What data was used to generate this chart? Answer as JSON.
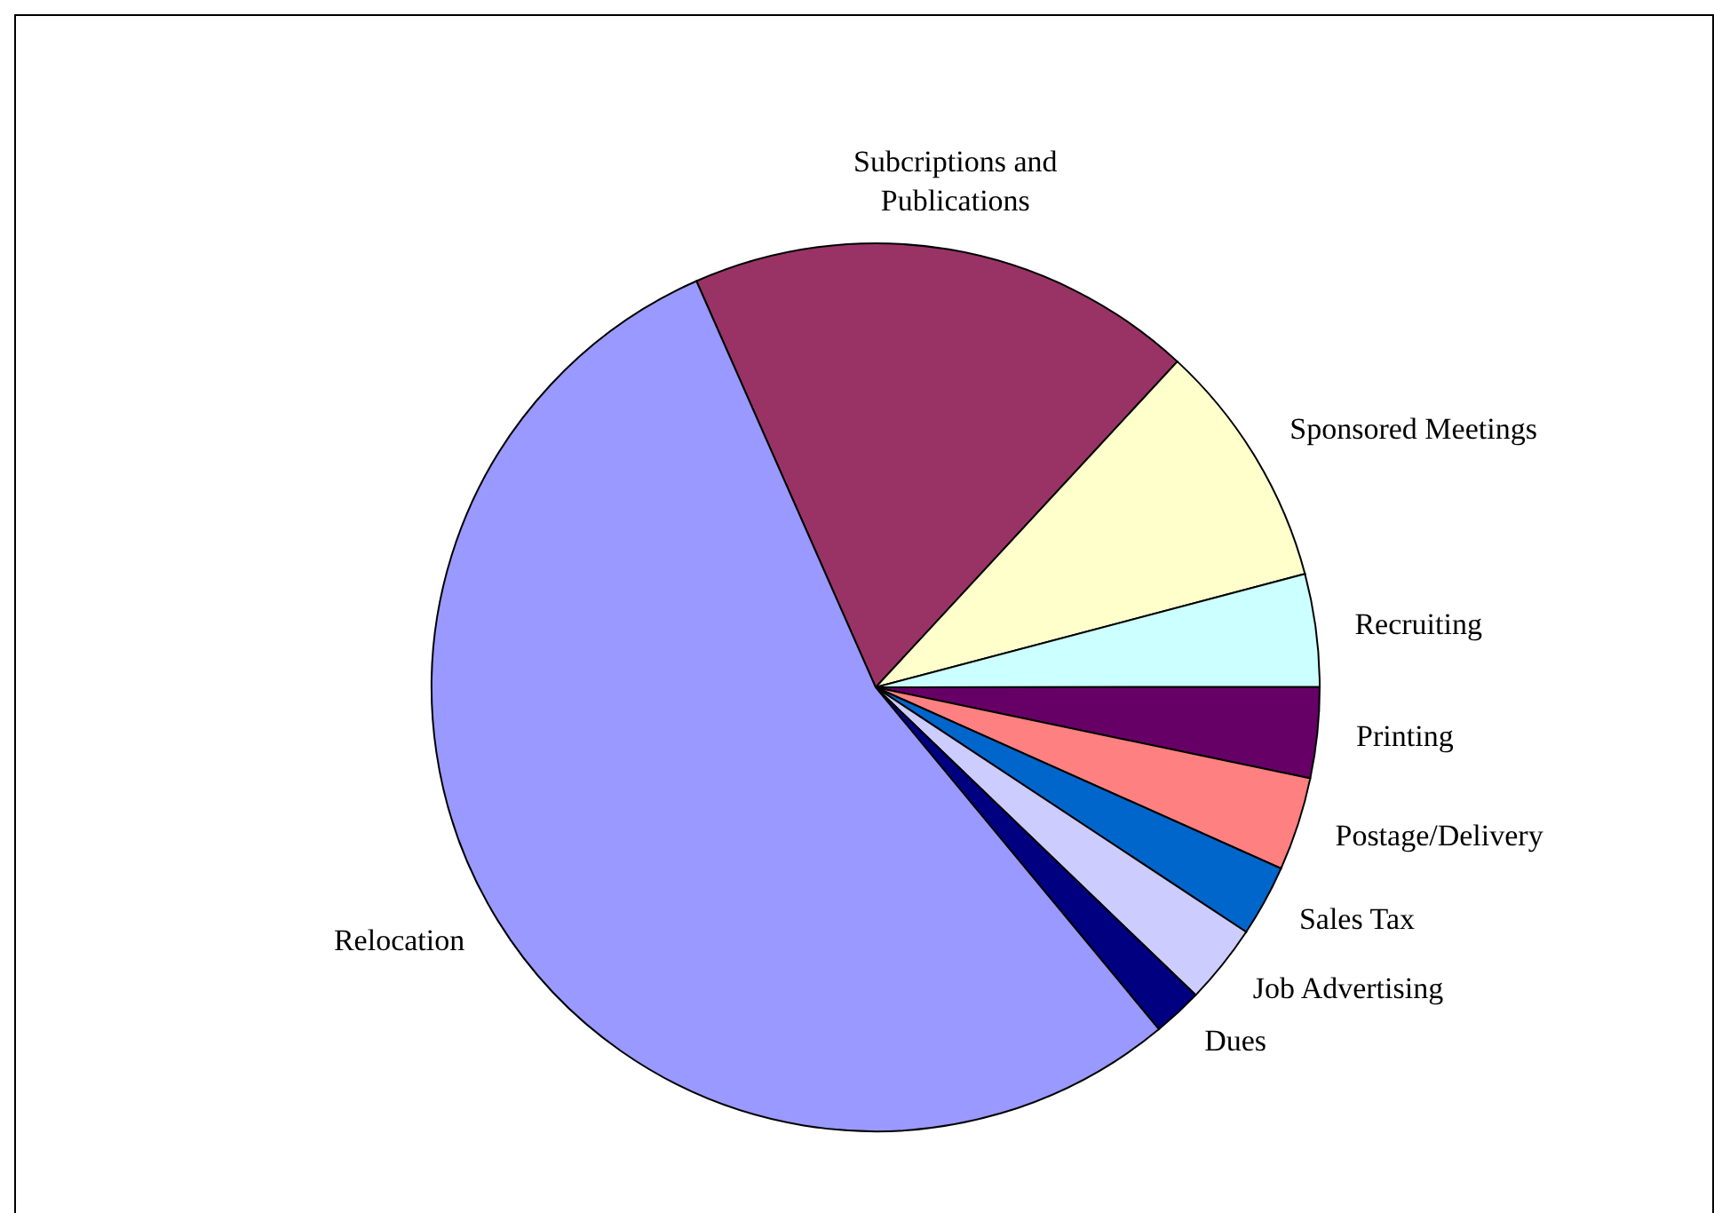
{
  "chart_data": {
    "type": "pie",
    "categories": [
      "Subcriptions and Publications",
      "Sponsored Meetings",
      "Recruiting",
      "Printing",
      "Postage/Delivery",
      "Sales Tax",
      "Job Advertising",
      "Dues",
      "Relocation"
    ],
    "values": [
      18.5,
      9.0,
      4.1,
      3.3,
      3.4,
      2.6,
      2.9,
      1.8,
      54.4
    ],
    "colors": [
      "#993366",
      "#ffffcc",
      "#ccffff",
      "#660066",
      "#ff8080",
      "#0066cc",
      "#ccccff",
      "#000080",
      "#9999ff"
    ]
  }
}
